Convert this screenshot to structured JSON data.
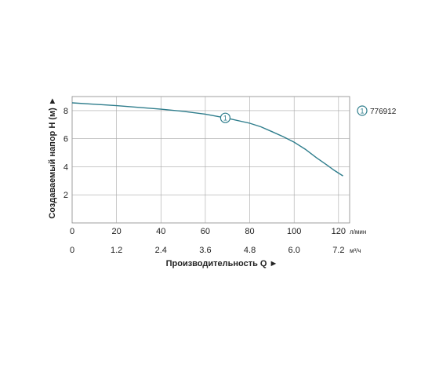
{
  "chart_data": {
    "type": "line",
    "title": "",
    "ylabel": "Создаваемый напор H (м) ►",
    "xlabel": "Производительность Q ►",
    "x_unit_top": "л/мин",
    "x_unit_bottom": "м³/ч",
    "x_ticks_top": [
      "0",
      "20",
      "40",
      "60",
      "80",
      "100",
      "120"
    ],
    "x_ticks_bottom": [
      "0",
      "1.2",
      "2.4",
      "3.6",
      "4.8",
      "6.0",
      "7.2"
    ],
    "y_ticks": [
      "2",
      "4",
      "6",
      "8"
    ],
    "xlim": [
      0,
      125
    ],
    "ylim": [
      0,
      9
    ],
    "grid": true,
    "legend_position": "top-right",
    "series": [
      {
        "name": "776912",
        "marker_label": "1",
        "marker_x": 69,
        "color": "#2e7d8c",
        "x": [
          0,
          10,
          20,
          30,
          40,
          50,
          60,
          70,
          80,
          85,
          90,
          95,
          100,
          105,
          110,
          115,
          118,
          122
        ],
        "y": [
          8.55,
          8.45,
          8.35,
          8.23,
          8.1,
          7.95,
          7.75,
          7.45,
          7.1,
          6.85,
          6.5,
          6.15,
          5.75,
          5.25,
          4.65,
          4.1,
          3.75,
          3.35
        ]
      }
    ]
  }
}
